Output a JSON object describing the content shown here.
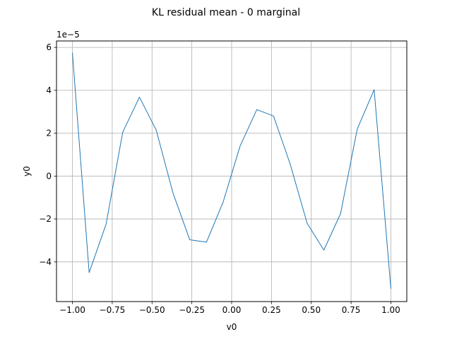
{
  "chart_data": {
    "type": "line",
    "title": "KL residual mean - 0 marginal",
    "xlabel": "v0",
    "ylabel": "y0",
    "y_offset_label": "1e−5",
    "y_scale": 1e-05,
    "xlim": [
      -1.1,
      1.1
    ],
    "ylim": [
      -5.85e-05,
      6.3e-05
    ],
    "grid": true,
    "x_ticks": [
      -1.0,
      -0.75,
      -0.5,
      -0.25,
      0.0,
      0.25,
      0.5,
      0.75,
      1.0
    ],
    "x_tick_labels": [
      "−1.00",
      "−0.75",
      "−0.50",
      "−0.25",
      "0.00",
      "0.25",
      "0.50",
      "0.75",
      "1.00"
    ],
    "y_ticks": [
      -4e-05,
      -2e-05,
      0,
      2e-05,
      4e-05,
      6e-05
    ],
    "y_tick_labels": [
      "−4",
      "−2",
      "0",
      "2",
      "4",
      "6"
    ],
    "series": [
      {
        "color": "#1f77b4",
        "x": [
          -1.0,
          -0.895,
          -0.789,
          -0.684,
          -0.579,
          -0.474,
          -0.368,
          -0.263,
          -0.158,
          -0.053,
          0.053,
          0.158,
          0.263,
          0.368,
          0.474,
          0.579,
          0.684,
          0.789,
          0.895,
          1.0
        ],
        "y": [
          5.75e-05,
          -4.5e-05,
          -2.25e-05,
          2.05e-05,
          3.68e-05,
          2.15e-05,
          -8e-06,
          -2.97e-05,
          -3.08e-05,
          -1.2e-05,
          1.4e-05,
          3.1e-05,
          2.8e-05,
          5.5e-06,
          -2.2e-05,
          -3.45e-05,
          -1.75e-05,
          2.2e-05,
          4.03e-05,
          -5.25e-05
        ]
      }
    ]
  }
}
